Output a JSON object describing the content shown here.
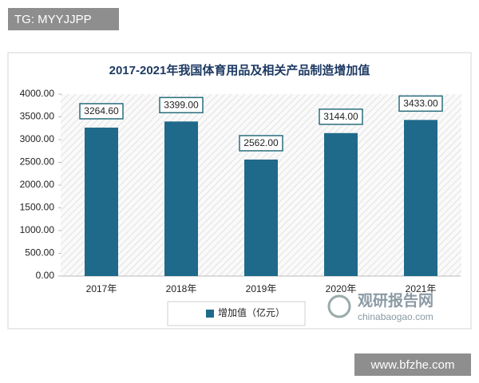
{
  "watermark_top": "TG: MYYJJPP",
  "watermark_bottom": "www.bfzhe.com",
  "logo": {
    "name": "观研报告网",
    "url": "chinabaogao.com"
  },
  "chart_data": {
    "type": "bar",
    "title": "2017-2021年我国体育用品及相关产品制造增加值",
    "categories": [
      "2017年",
      "2018年",
      "2019年",
      "2020年",
      "2021年"
    ],
    "series": [
      {
        "name": "增加值（亿元）",
        "color": "#1f6a8a",
        "values": [
          3264.6,
          3399,
          2562,
          3144,
          3433
        ],
        "value_labels": [
          "3264.60",
          "3399.00",
          "2562.00",
          "3144.00",
          "3433.00"
        ]
      }
    ],
    "ylim": [
      0,
      4000
    ],
    "yticks": [
      {
        "value": 0,
        "label": "0.00"
      },
      {
        "value": 500,
        "label": "500.00"
      },
      {
        "value": 1000,
        "label": "1000.00"
      },
      {
        "value": 1500,
        "label": "1500.00"
      },
      {
        "value": 2000,
        "label": "2000.00"
      },
      {
        "value": 2500,
        "label": "2500.00"
      },
      {
        "value": 3000,
        "label": "3000.00"
      },
      {
        "value": 3500,
        "label": "3500.00"
      },
      {
        "value": 4000,
        "label": "4000.00"
      }
    ],
    "legend": "bottom"
  }
}
